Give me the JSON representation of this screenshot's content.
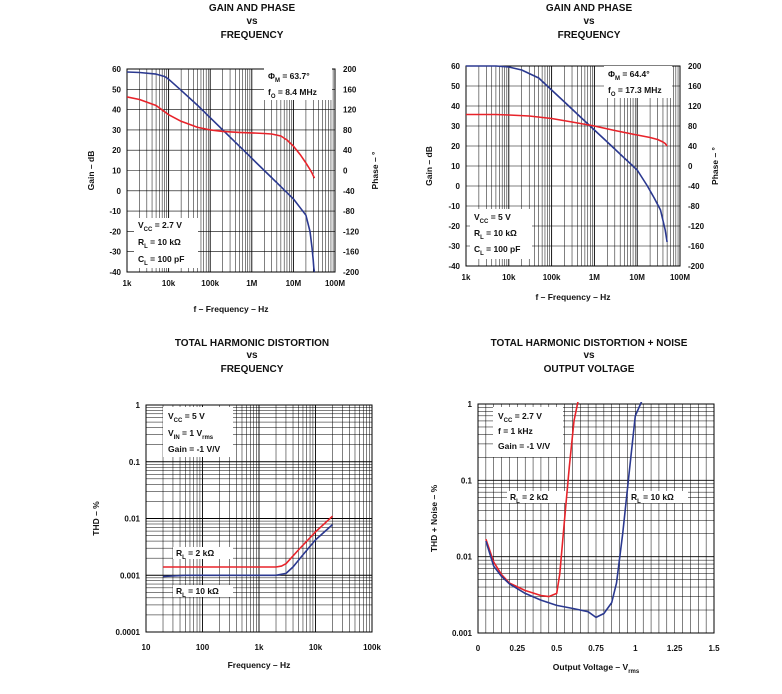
{
  "chart_data": [
    {
      "id": "gp1",
      "type": "line",
      "title": [
        "GAIN AND PHASE",
        "vs",
        "FREQUENCY"
      ],
      "xlabel": "f – Frequency – Hz",
      "ylabel": "Gain – dB",
      "y2label": "Phase – °",
      "xscale": "log",
      "xlim": [
        1000,
        100000000
      ],
      "ylim": [
        -40,
        60
      ],
      "y2lim": [
        -200,
        200
      ],
      "x_ticks": [
        {
          "v": 1000,
          "t": "1k"
        },
        {
          "v": 10000,
          "t": "10k"
        },
        {
          "v": 100000,
          "t": "100k"
        },
        {
          "v": 1000000,
          "t": "1M"
        },
        {
          "v": 10000000,
          "t": "10M"
        },
        {
          "v": 100000000,
          "t": "100M"
        }
      ],
      "y_ticks": [
        {
          "v": 60,
          "t": "60"
        },
        {
          "v": 50,
          "t": "50"
        },
        {
          "v": 40,
          "t": "40"
        },
        {
          "v": 30,
          "t": "30"
        },
        {
          "v": 20,
          "t": "20"
        },
        {
          "v": 10,
          "t": "10"
        },
        {
          "v": 0,
          "t": "0"
        },
        {
          "v": -10,
          "t": "-10"
        },
        {
          "v": -20,
          "t": "-20"
        },
        {
          "v": -30,
          "t": "-30"
        },
        {
          "v": -40,
          "t": "-40"
        }
      ],
      "y2_ticks": [
        {
          "v": 200,
          "t": "200"
        },
        {
          "v": 160,
          "t": "160"
        },
        {
          "v": 120,
          "t": "120"
        },
        {
          "v": 80,
          "t": "80"
        },
        {
          "v": 40,
          "t": "40"
        },
        {
          "v": 0,
          "t": "0"
        },
        {
          "v": -40,
          "t": "-40"
        },
        {
          "v": -80,
          "t": "-80"
        },
        {
          "v": -120,
          "t": "-120"
        },
        {
          "v": -160,
          "t": "-160"
        },
        {
          "v": -200,
          "t": "-200"
        }
      ],
      "series": [
        {
          "name": "Gain",
          "color": "#2b3990",
          "axis": "y",
          "x": [
            1000,
            2000,
            5000,
            8000,
            10000,
            20000,
            50000,
            100000,
            200000,
            500000,
            1000000,
            2000000,
            5000000,
            10000000,
            20000000,
            25000000,
            28000000,
            30000000,
            31000000,
            32000000
          ],
          "y": [
            58.5,
            58.3,
            57.5,
            56.3,
            55,
            49.5,
            42,
            36,
            30,
            22,
            16,
            10,
            2,
            -4,
            -12,
            -20,
            -28,
            -34,
            -38,
            -40
          ]
        },
        {
          "name": "Phase",
          "color": "#e8232a",
          "axis": "y2",
          "x": [
            1000,
            2000,
            5000,
            10000,
            20000,
            50000,
            100000,
            200000,
            500000,
            1000000,
            2000000,
            3000000,
            5000000,
            7000000,
            10000000,
            15000000,
            20000000,
            25000000,
            28000000,
            30000000,
            32000000
          ],
          "y": [
            145,
            140,
            128,
            110,
            97,
            85,
            80,
            77,
            75,
            74,
            73,
            72,
            68,
            60,
            48,
            30,
            15,
            2,
            -5,
            -10,
            -15
          ]
        }
      ],
      "legend_lines": [
        {
          "parts": [
            {
              "t": "Φ"
            },
            {
              "t": "M",
              "sub": true
            },
            {
              "t": " = 63.7°"
            }
          ]
        },
        {
          "parts": [
            {
              "t": "f"
            },
            {
              "t": "O",
              "sub": true
            },
            {
              "t": " = 8.4 MHz"
            }
          ]
        },
        {
          "parts": [
            {
              "t": "V"
            },
            {
              "t": "CC",
              "sub": true
            },
            {
              "t": " = 2.7 V"
            }
          ]
        },
        {
          "parts": [
            {
              "t": "R"
            },
            {
              "t": "L",
              "sub": true
            },
            {
              "t": " = 10 kΩ"
            }
          ]
        },
        {
          "parts": [
            {
              "t": "C"
            },
            {
              "t": "L",
              "sub": true
            },
            {
              "t": " = 100 pF"
            }
          ]
        }
      ]
    },
    {
      "id": "gp2",
      "type": "line",
      "title": [
        "GAIN AND PHASE",
        "vs",
        "FREQUENCY"
      ],
      "xlabel": "f – Frequency – Hz",
      "ylabel": "Gain – dB",
      "y2label": "Phase – °",
      "xscale": "log",
      "xlim": [
        1000,
        100000000
      ],
      "ylim": [
        -40,
        60
      ],
      "y2lim": [
        -200,
        200
      ],
      "x_ticks": [
        {
          "v": 1000,
          "t": "1k"
        },
        {
          "v": 10000,
          "t": "10k"
        },
        {
          "v": 100000,
          "t": "100k"
        },
        {
          "v": 1000000,
          "t": "1M"
        },
        {
          "v": 10000000,
          "t": "10M"
        },
        {
          "v": 100000000,
          "t": "100M"
        }
      ],
      "y_ticks": [
        {
          "v": 60,
          "t": "60"
        },
        {
          "v": 50,
          "t": "50"
        },
        {
          "v": 40,
          "t": "40"
        },
        {
          "v": 30,
          "t": "30"
        },
        {
          "v": 20,
          "t": "20"
        },
        {
          "v": 10,
          "t": "10"
        },
        {
          "v": 0,
          "t": "0"
        },
        {
          "v": -10,
          "t": "-10"
        },
        {
          "v": -20,
          "t": "-20"
        },
        {
          "v": -30,
          "t": "-30"
        },
        {
          "v": -40,
          "t": "-40"
        }
      ],
      "y2_ticks": [
        {
          "v": 200,
          "t": "200"
        },
        {
          "v": 160,
          "t": "160"
        },
        {
          "v": 120,
          "t": "120"
        },
        {
          "v": 80,
          "t": "80"
        },
        {
          "v": 40,
          "t": "40"
        },
        {
          "v": 0,
          "t": "0"
        },
        {
          "v": -40,
          "t": "-40"
        },
        {
          "v": -80,
          "t": "-80"
        },
        {
          "v": -120,
          "t": "-120"
        },
        {
          "v": -160,
          "t": "-160"
        },
        {
          "v": -200,
          "t": "-200"
        }
      ],
      "series": [
        {
          "name": "Gain",
          "color": "#2b3990",
          "axis": "y",
          "x": [
            1000,
            5000,
            10000,
            20000,
            50000,
            100000,
            200000,
            500000,
            1000000,
            2000000,
            5000000,
            10000000,
            17300000,
            25000000,
            35000000,
            45000000,
            50000000
          ],
          "y": [
            60,
            60,
            59.5,
            58,
            54,
            48,
            42,
            34,
            28,
            22,
            14,
            8,
            0,
            -6,
            -12,
            -22,
            -28
          ]
        },
        {
          "name": "Phase",
          "color": "#e8232a",
          "axis": "y2",
          "x": [
            1000,
            5000,
            10000,
            30000,
            100000,
            300000,
            1000000,
            3000000,
            10000000,
            20000000,
            30000000,
            40000000,
            45000000,
            50000000
          ],
          "y": [
            103,
            103,
            102,
            100,
            95,
            88,
            80,
            71,
            62,
            57,
            53,
            48,
            45,
            40
          ]
        }
      ],
      "legend_lines": [
        {
          "parts": [
            {
              "t": "Φ"
            },
            {
              "t": "M",
              "sub": true
            },
            {
              "t": " = 64.4°"
            }
          ]
        },
        {
          "parts": [
            {
              "t": "f"
            },
            {
              "t": "O",
              "sub": true
            },
            {
              "t": " = 17.3 MHz"
            }
          ]
        },
        {
          "parts": [
            {
              "t": "V"
            },
            {
              "t": "CC",
              "sub": true
            },
            {
              "t": " = 5 V"
            }
          ]
        },
        {
          "parts": [
            {
              "t": "R"
            },
            {
              "t": "L",
              "sub": true
            },
            {
              "t": " = 10 kΩ"
            }
          ]
        },
        {
          "parts": [
            {
              "t": "C"
            },
            {
              "t": "L",
              "sub": true
            },
            {
              "t": " = 100 pF"
            }
          ]
        }
      ]
    },
    {
      "id": "thd",
      "type": "line",
      "title": [
        "TOTAL HARMONIC DISTORTION",
        "vs",
        "FREQUENCY"
      ],
      "xlabel": "Frequency – Hz",
      "ylabel": "THD – %",
      "xscale": "log",
      "yscale": "log",
      "xlim": [
        10,
        100000
      ],
      "ylim": [
        0.0001,
        1
      ],
      "x_ticks": [
        {
          "v": 10,
          "t": "10"
        },
        {
          "v": 100,
          "t": "100"
        },
        {
          "v": 1000,
          "t": "1k"
        },
        {
          "v": 10000,
          "t": "10k"
        },
        {
          "v": 100000,
          "t": "100k"
        }
      ],
      "y_ticks": [
        {
          "v": 1,
          "t": "1"
        },
        {
          "v": 0.1,
          "t": "0.1"
        },
        {
          "v": 0.01,
          "t": "0.01"
        },
        {
          "v": 0.001,
          "t": "0.001"
        },
        {
          "v": 0.0001,
          "t": "0.0001"
        }
      ],
      "series": [
        {
          "name": "RL = 2 kΩ",
          "color": "#e8232a",
          "x": [
            20,
            50,
            100,
            300,
            1000,
            2000,
            2500,
            3000,
            5000,
            10000,
            20000
          ],
          "y": [
            0.0014,
            0.0014,
            0.0014,
            0.0014,
            0.0014,
            0.0014,
            0.00145,
            0.0016,
            0.0028,
            0.0058,
            0.011
          ]
        },
        {
          "name": "RL = 10 kΩ",
          "color": "#2b3990",
          "x": [
            20,
            50,
            100,
            300,
            1000,
            2000,
            3000,
            4000,
            6000,
            10000,
            20000
          ],
          "y": [
            0.00095,
            0.001,
            0.001,
            0.001,
            0.001,
            0.001,
            0.00108,
            0.0014,
            0.0023,
            0.0042,
            0.0078
          ]
        }
      ],
      "legend_lines": [
        {
          "parts": [
            {
              "t": "V"
            },
            {
              "t": "CC",
              "sub": true
            },
            {
              "t": " = 5 V"
            }
          ]
        },
        {
          "parts": [
            {
              "t": "V"
            },
            {
              "t": "IN",
              "sub": true
            },
            {
              "t": " = 1 V"
            },
            {
              "t": "rms",
              "sub": true
            }
          ]
        },
        {
          "parts": [
            {
              "t": "Gain = -1 V/V"
            }
          ]
        }
      ],
      "series_labels": [
        {
          "parts": [
            {
              "t": "R"
            },
            {
              "t": "L",
              "sub": true
            },
            {
              "t": " = 2 kΩ"
            }
          ]
        },
        {
          "parts": [
            {
              "t": "R"
            },
            {
              "t": "L",
              "sub": true
            },
            {
              "t": " = 10 kΩ"
            }
          ]
        }
      ]
    },
    {
      "id": "thdn",
      "type": "line",
      "title": [
        "TOTAL HARMONIC DISTORTION + NOISE",
        "vs",
        "OUTPUT VOLTAGE"
      ],
      "xlabel": "Output Voltage – V",
      "xlabel_sub": "rms",
      "ylabel": "THD + Noise – %",
      "xscale": "linear",
      "yscale": "log",
      "xlim": [
        0,
        1.5
      ],
      "ylim": [
        0.001,
        1
      ],
      "x_ticks": [
        {
          "v": 0,
          "t": "0"
        },
        {
          "v": 0.25,
          "t": "0.25"
        },
        {
          "v": 0.5,
          "t": "0.5"
        },
        {
          "v": 0.75,
          "t": "0.75"
        },
        {
          "v": 1,
          "t": "1"
        },
        {
          "v": 1.25,
          "t": "1.25"
        },
        {
          "v": 1.5,
          "t": "1.5"
        }
      ],
      "y_ticks": [
        {
          "v": 1,
          "t": "1"
        },
        {
          "v": 0.1,
          "t": "0.1"
        },
        {
          "v": 0.01,
          "t": "0.01"
        },
        {
          "v": 0.001,
          "t": "0.001"
        }
      ],
      "series": [
        {
          "name": "RL = 2 kΩ",
          "color": "#e8232a",
          "x": [
            0.05,
            0.1,
            0.15,
            0.2,
            0.3,
            0.4,
            0.45,
            0.5,
            0.52,
            0.55,
            0.58,
            0.61,
            0.64
          ],
          "y": [
            0.017,
            0.0085,
            0.0058,
            0.0045,
            0.0036,
            0.0031,
            0.003,
            0.0033,
            0.006,
            0.03,
            0.15,
            0.6,
            1.2
          ]
        },
        {
          "name": "RL = 10 kΩ",
          "color": "#2b3990",
          "x": [
            0.05,
            0.1,
            0.15,
            0.2,
            0.3,
            0.4,
            0.5,
            0.6,
            0.7,
            0.75,
            0.8,
            0.85,
            0.88,
            0.92,
            0.96,
            1.0,
            1.05
          ],
          "y": [
            0.016,
            0.0075,
            0.0055,
            0.0044,
            0.0033,
            0.0027,
            0.0023,
            0.0021,
            0.0019,
            0.0016,
            0.0018,
            0.0025,
            0.0045,
            0.02,
            0.12,
            0.7,
            1.2
          ]
        }
      ],
      "legend_lines": [
        {
          "parts": [
            {
              "t": "V"
            },
            {
              "t": "CC",
              "sub": true
            },
            {
              "t": " = 2.7 V"
            }
          ]
        },
        {
          "parts": [
            {
              "t": "f = 1 kHz"
            }
          ]
        },
        {
          "parts": [
            {
              "t": "Gain = -1 V/V"
            }
          ]
        }
      ],
      "series_labels": [
        {
          "parts": [
            {
              "t": "R"
            },
            {
              "t": "L",
              "sub": true
            },
            {
              "t": " = 2 kΩ"
            }
          ]
        },
        {
          "parts": [
            {
              "t": "R"
            },
            {
              "t": "L",
              "sub": true
            },
            {
              "t": " = 10 kΩ"
            }
          ]
        }
      ]
    }
  ]
}
